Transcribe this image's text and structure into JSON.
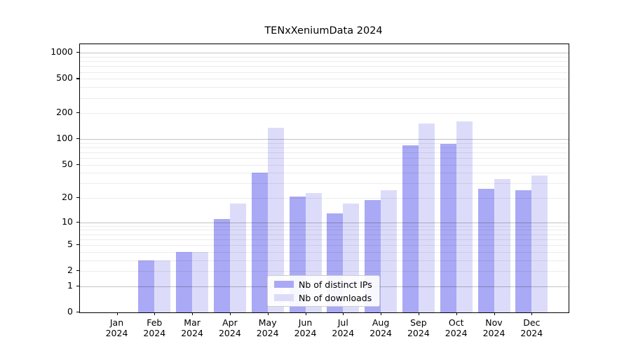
{
  "chart_data": {
    "type": "bar",
    "title": "TENxXeniumData 2024",
    "categories": [
      "Jan 2024",
      "Feb 2024",
      "Mar 2024",
      "Apr 2024",
      "May 2024",
      "Jun 2024",
      "Jul 2024",
      "Aug 2024",
      "Sep 2024",
      "Oct 2024",
      "Nov 2024",
      "Dec 2024"
    ],
    "series": [
      {
        "name": "Nb of distinct IPs",
        "color": "#a9a9f5",
        "values": [
          0,
          3,
          4,
          11,
          40,
          21,
          13,
          19,
          85,
          87,
          26,
          25
        ]
      },
      {
        "name": "Nb of downloads",
        "color": "#dcdcfa",
        "values": [
          0,
          3,
          4,
          17,
          135,
          23,
          17,
          25,
          152,
          160,
          34,
          37
        ]
      }
    ],
    "xlabel": "",
    "ylabel": "",
    "yscale": "log1p",
    "ylim": [
      0,
      1260
    ],
    "yticks": [
      0,
      1,
      2,
      5,
      10,
      20,
      50,
      100,
      200,
      500,
      1000
    ],
    "major_grid_values": [
      1,
      10,
      100,
      1000
    ],
    "minor_grid_values": [
      2,
      3,
      4,
      5,
      6,
      7,
      8,
      9,
      20,
      30,
      40,
      50,
      60,
      70,
      80,
      90,
      200,
      300,
      400,
      500,
      600,
      700,
      800,
      900
    ],
    "grid": "on",
    "legend_position": "lower center"
  }
}
